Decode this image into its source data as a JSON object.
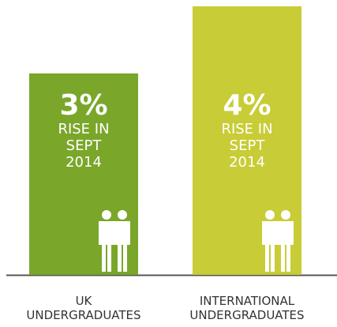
{
  "chart_data": {
    "type": "bar",
    "categories": [
      "UK UNDERGRADUATES",
      "INTERNATIONAL UNDERGRADUATES"
    ],
    "values": [
      3,
      4
    ],
    "value_labels": [
      "3%",
      "4%"
    ],
    "bar_notes": [
      "RISE IN SEPT 2014",
      "RISE IN SEPT 2014"
    ],
    "colors": [
      "#7aa62a",
      "#c8cc36"
    ],
    "ylim": [
      0,
      4
    ]
  }
}
